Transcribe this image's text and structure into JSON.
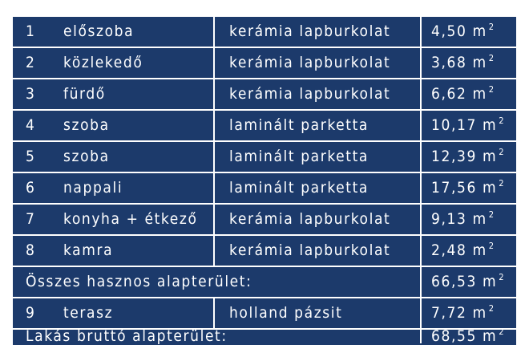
{
  "rows": [
    {
      "num": "1",
      "name": "előszoba",
      "material": "kerámia lapburkolat",
      "area": "4,50 m",
      "unit_exp": "2"
    },
    {
      "num": "2",
      "name": "közlekedő",
      "material": "kerámia lapburkolat",
      "area": "3,68 m",
      "unit_exp": "2"
    },
    {
      "num": "3",
      "name": "fürdő",
      "material": "kerámia lapburkolat",
      "area": "6,62 m",
      "unit_exp": "2"
    },
    {
      "num": "4",
      "name": "szoba",
      "material": "laminált parketta",
      "area": "10,17 m",
      "unit_exp": "2"
    },
    {
      "num": "5",
      "name": "szoba",
      "material": "laminált parketta",
      "area": "12,39 m",
      "unit_exp": "2"
    },
    {
      "num": "6",
      "name": "nappali",
      "material": "laminált parketta",
      "area": "17,56 m",
      "unit_exp": "2"
    },
    {
      "num": "7",
      "name": "konyha + étkező",
      "material": "kerámia lapburkolat",
      "area": "9,13 m",
      "unit_exp": "2"
    },
    {
      "num": "8",
      "name": "kamra",
      "material": "kerámia lapburkolat",
      "area": "2,48 m",
      "unit_exp": "2"
    }
  ],
  "subtotal": {
    "label": "Összes hasznos alapterület:",
    "area": "66,53 m",
    "unit_exp": "2"
  },
  "terrace": {
    "num": "9",
    "name": "terasz",
    "material": "holland pázsit",
    "area": "7,72 m",
    "unit_exp": "2"
  },
  "total": {
    "label": "Lakás bruttó alapterület:",
    "area": "68,55 m",
    "unit_exp": "2"
  },
  "colors": {
    "background": "#1c3a6b",
    "text": "#ffffff",
    "lines": "#ffffff"
  }
}
